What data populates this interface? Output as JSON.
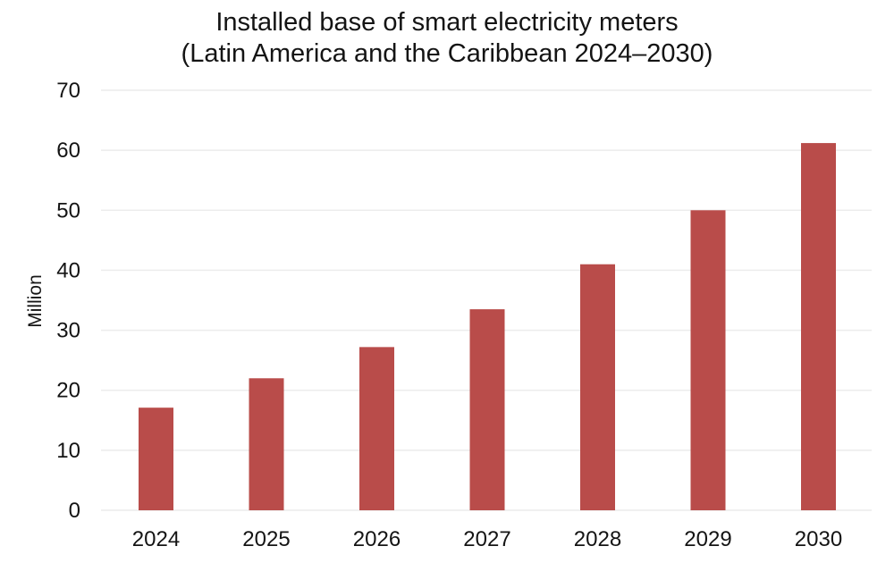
{
  "chart_data": {
    "type": "bar",
    "title": "Installed base of smart electricity meters",
    "subtitle": "(Latin America and the Caribbean 2024–2030)",
    "xlabel": "",
    "ylabel": "Million",
    "categories": [
      "2024",
      "2025",
      "2026",
      "2027",
      "2028",
      "2029",
      "2030"
    ],
    "values": [
      17.1,
      22.0,
      27.2,
      33.5,
      41.0,
      50.0,
      61.2
    ],
    "ylim": [
      0,
      70
    ],
    "yticks": [
      0,
      10,
      20,
      30,
      40,
      50,
      60,
      70
    ],
    "grid": true,
    "legend": "none",
    "bar_color": "#b94c4a",
    "grid_color": "#ececec"
  }
}
